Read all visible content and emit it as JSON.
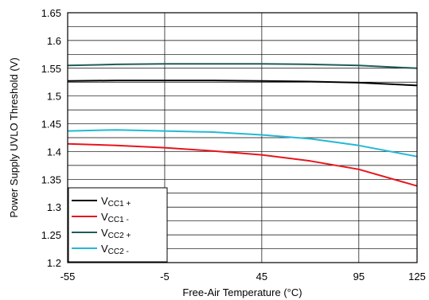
{
  "chart_data": {
    "type": "line",
    "title": "",
    "xlabel": "Free-Air Temperature (°C)",
    "ylabel": "Power Supply UVLO Threshold (V)",
    "xlim": [
      -55,
      125
    ],
    "ylim": [
      1.2,
      1.65
    ],
    "x_ticks": [
      -55,
      -5,
      45,
      95,
      125
    ],
    "x_tick_labels": [
      "-55",
      "-5",
      "45",
      "95",
      "125"
    ],
    "y_ticks": [
      1.2,
      1.25,
      1.3,
      1.35,
      1.4,
      1.45,
      1.5,
      1.55,
      1.6,
      1.65
    ],
    "y_tick_labels": [
      "1.2",
      "1.25",
      "1.3",
      "1.35",
      "1.4",
      "1.45",
      "1.5",
      "1.55",
      "1.6",
      "1.65"
    ],
    "grid": true,
    "legend_position": "bottom-left",
    "series": [
      {
        "name": "VCC1 +",
        "legend_main": "V",
        "legend_sub": "CC1 +",
        "color": "#000000",
        "x": [
          -55,
          -30,
          -5,
          20,
          45,
          70,
          95,
          125
        ],
        "y": [
          1.527,
          1.528,
          1.528,
          1.528,
          1.527,
          1.526,
          1.524,
          1.519
        ]
      },
      {
        "name": "VCC1 -",
        "legend_main": "V",
        "legend_sub": "CC1 -",
        "color": "#e8141c",
        "x": [
          -55,
          -30,
          -5,
          20,
          45,
          70,
          95,
          125
        ],
        "y": [
          1.414,
          1.411,
          1.407,
          1.401,
          1.394,
          1.383,
          1.368,
          1.338
        ]
      },
      {
        "name": "VCC2 +",
        "legend_main": "V",
        "legend_sub": "CC2 +",
        "color": "#1f5c58",
        "x": [
          -55,
          -30,
          -5,
          20,
          45,
          70,
          95,
          125
        ],
        "y": [
          1.555,
          1.557,
          1.558,
          1.558,
          1.558,
          1.557,
          1.555,
          1.55
        ]
      },
      {
        "name": "VCC2 -",
        "legend_main": "V",
        "legend_sub": "CC2 -",
        "color": "#22b9d4",
        "x": [
          -55,
          -30,
          -5,
          20,
          45,
          70,
          95,
          125
        ],
        "y": [
          1.437,
          1.439,
          1.437,
          1.435,
          1.43,
          1.423,
          1.411,
          1.391
        ]
      }
    ]
  }
}
